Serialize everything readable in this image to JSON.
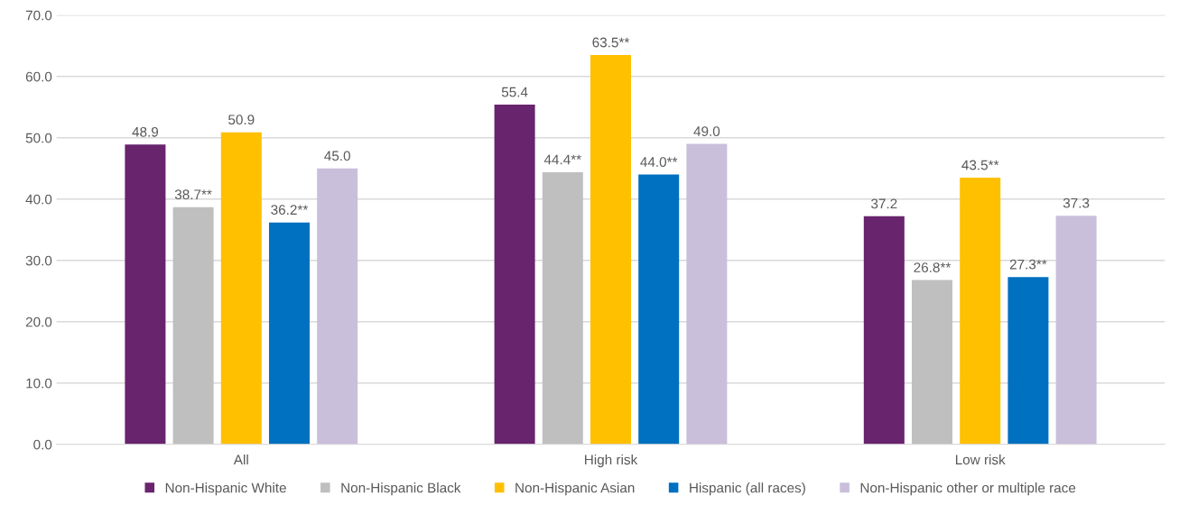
{
  "chart_data": {
    "type": "bar",
    "categories": [
      "All",
      "High risk",
      "Low risk"
    ],
    "series": [
      {
        "name": "Non-Hispanic White",
        "color": "#68246d",
        "values": [
          48.9,
          55.4,
          37.2
        ],
        "value_labels": [
          "48.9",
          "55.4",
          "37.2"
        ]
      },
      {
        "name": "Non-Hispanic Black",
        "color": "#bfbfbf",
        "values": [
          38.7,
          44.4,
          26.8
        ],
        "value_labels": [
          "38.7**",
          "44.4**",
          "26.8**"
        ]
      },
      {
        "name": "Non-Hispanic Asian",
        "color": "#ffc000",
        "values": [
          50.9,
          63.5,
          43.5
        ],
        "value_labels": [
          "50.9",
          "63.5**",
          "43.5**"
        ]
      },
      {
        "name": "Hispanic (all races)",
        "color": "#0070c0",
        "values": [
          36.2,
          44.0,
          27.3
        ],
        "value_labels": [
          "36.2**",
          "44.0**",
          "27.3**"
        ]
      },
      {
        "name": "Non-Hispanic other or multiple race",
        "color": "#c9bfdb",
        "values": [
          45.0,
          49.0,
          37.3
        ],
        "value_labels": [
          "45.0",
          "49.0",
          "37.3"
        ]
      }
    ],
    "ylim": [
      0,
      70
    ],
    "yticks": [
      {
        "value": 0,
        "label": "0.0"
      },
      {
        "value": 10,
        "label": "10.0"
      },
      {
        "value": 20,
        "label": "20.0"
      },
      {
        "value": 30,
        "label": "30.0"
      },
      {
        "value": 40,
        "label": "40.0"
      },
      {
        "value": 50,
        "label": "50.0"
      },
      {
        "value": 60,
        "label": "60.0"
      },
      {
        "value": 70,
        "label": "70.0"
      }
    ],
    "grid": "y",
    "legend": "bottom"
  }
}
